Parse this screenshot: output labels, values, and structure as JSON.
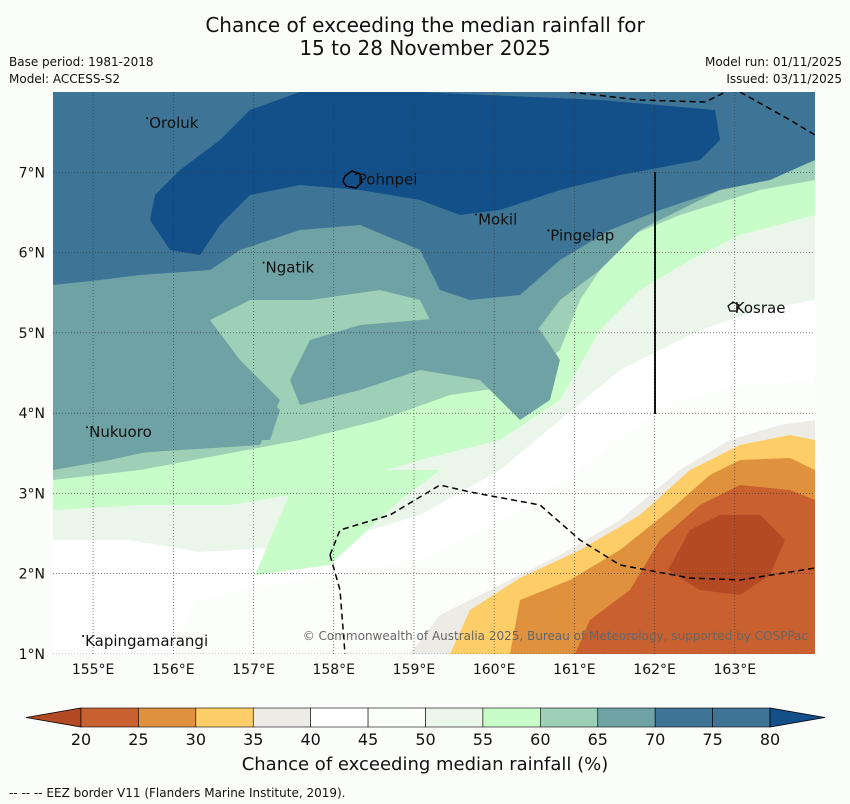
{
  "title": {
    "line1": "Chance of exceeding the median rainfall for",
    "line2": "15 to 28 November 2025"
  },
  "meta": {
    "base_period": "Base period: 1981-2018",
    "model": "Model: ACCESS-S2",
    "model_run": "Model run: 01/11/2025",
    "issued": "Issued: 03/11/2025"
  },
  "map": {
    "lon_range": [
      154.5,
      164.0
    ],
    "lat_range": [
      1.0,
      8.0
    ],
    "x_ticks": [
      "155°E",
      "156°E",
      "157°E",
      "158°E",
      "159°E",
      "160°E",
      "161°E",
      "162°E",
      "163°E"
    ],
    "y_ticks": [
      "7°N",
      "6°N",
      "5°N",
      "4°N",
      "3°N",
      "2°N",
      "1°N"
    ],
    "places": [
      {
        "name": "Oroluk",
        "lon": 155.7,
        "lat": 7.55
      },
      {
        "name": "Pohnpei",
        "lon": 158.3,
        "lat": 6.85
      },
      {
        "name": "Mokil",
        "lon": 159.8,
        "lat": 6.35
      },
      {
        "name": "Pingelap",
        "lon": 160.7,
        "lat": 6.15
      },
      {
        "name": "Ngatik",
        "lon": 157.15,
        "lat": 5.75
      },
      {
        "name": "Kosrae",
        "lon": 163.0,
        "lat": 5.25
      },
      {
        "name": "Nukuoro",
        "lon": 154.95,
        "lat": 3.7
      },
      {
        "name": "Kapingamarangi",
        "lon": 154.9,
        "lat": 1.1
      }
    ],
    "copyright": "© Commonwealth of Australia 2025, Bureau of Meteorology, supported by COSPPac"
  },
  "colorbar": {
    "levels": [
      "20",
      "25",
      "30",
      "35",
      "40",
      "45",
      "50",
      "55",
      "60",
      "65",
      "70",
      "75",
      "80"
    ],
    "colors": [
      "#b34a24",
      "#c9602f",
      "#e0913e",
      "#fdcd68",
      "#edebe6",
      "#ffffff",
      "#fcfefc",
      "#ebf6ea",
      "#c8fcc8",
      "#9dd0b6",
      "#6ea2a4",
      "#3e7597",
      "#134f89"
    ],
    "title": "Chance of exceeding median rainfall (%)"
  },
  "footer": "--  --  -- EEZ border V11 (Flanders Marine Institute, 2019)."
}
